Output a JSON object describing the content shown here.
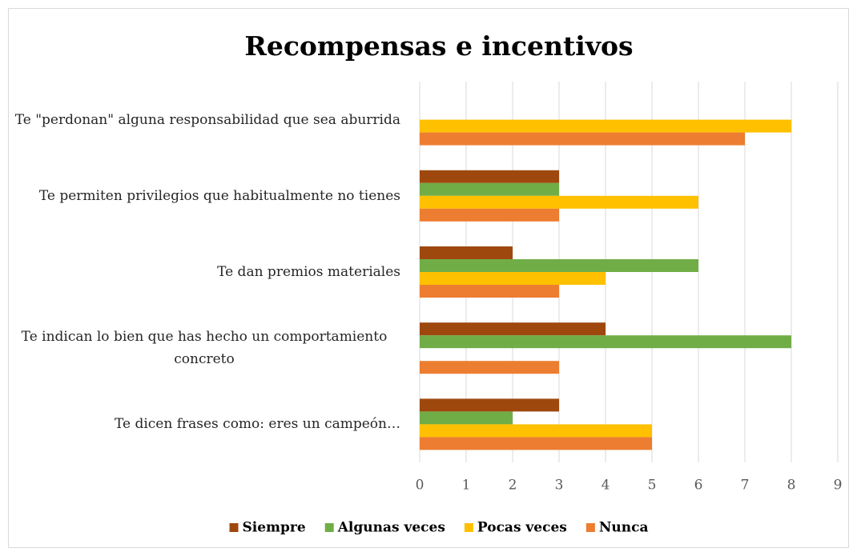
{
  "chart_data": {
    "type": "hbar",
    "title": "Recompensas e incentivos",
    "categories": [
      "Te \"perdonan\" alguna responsabilidad que sea aburrida",
      "Te permiten privilegios que habitualmente no tienes",
      "Te dan premios materiales",
      "Te indican lo bien que has hecho un comportamiento concreto",
      "Te dicen frases como: eres un campeón…"
    ],
    "series": [
      {
        "name": "Siempre",
        "color": "#9e480e",
        "values": [
          0,
          3,
          2,
          4,
          3
        ]
      },
      {
        "name": "Algunas veces",
        "color": "#70ad47",
        "values": [
          0,
          3,
          6,
          8,
          2
        ]
      },
      {
        "name": "Pocas veces",
        "color": "#ffc000",
        "values": [
          8,
          6,
          4,
          0,
          5
        ]
      },
      {
        "name": "Nunca",
        "color": "#ed7d31",
        "values": [
          7,
          3,
          3,
          3,
          5
        ]
      }
    ],
    "xlim": [
      0,
      9
    ],
    "xticks": [
      0,
      1,
      2,
      3,
      4,
      5,
      6,
      7,
      8,
      9
    ],
    "grid": true,
    "legend": "bottom"
  }
}
